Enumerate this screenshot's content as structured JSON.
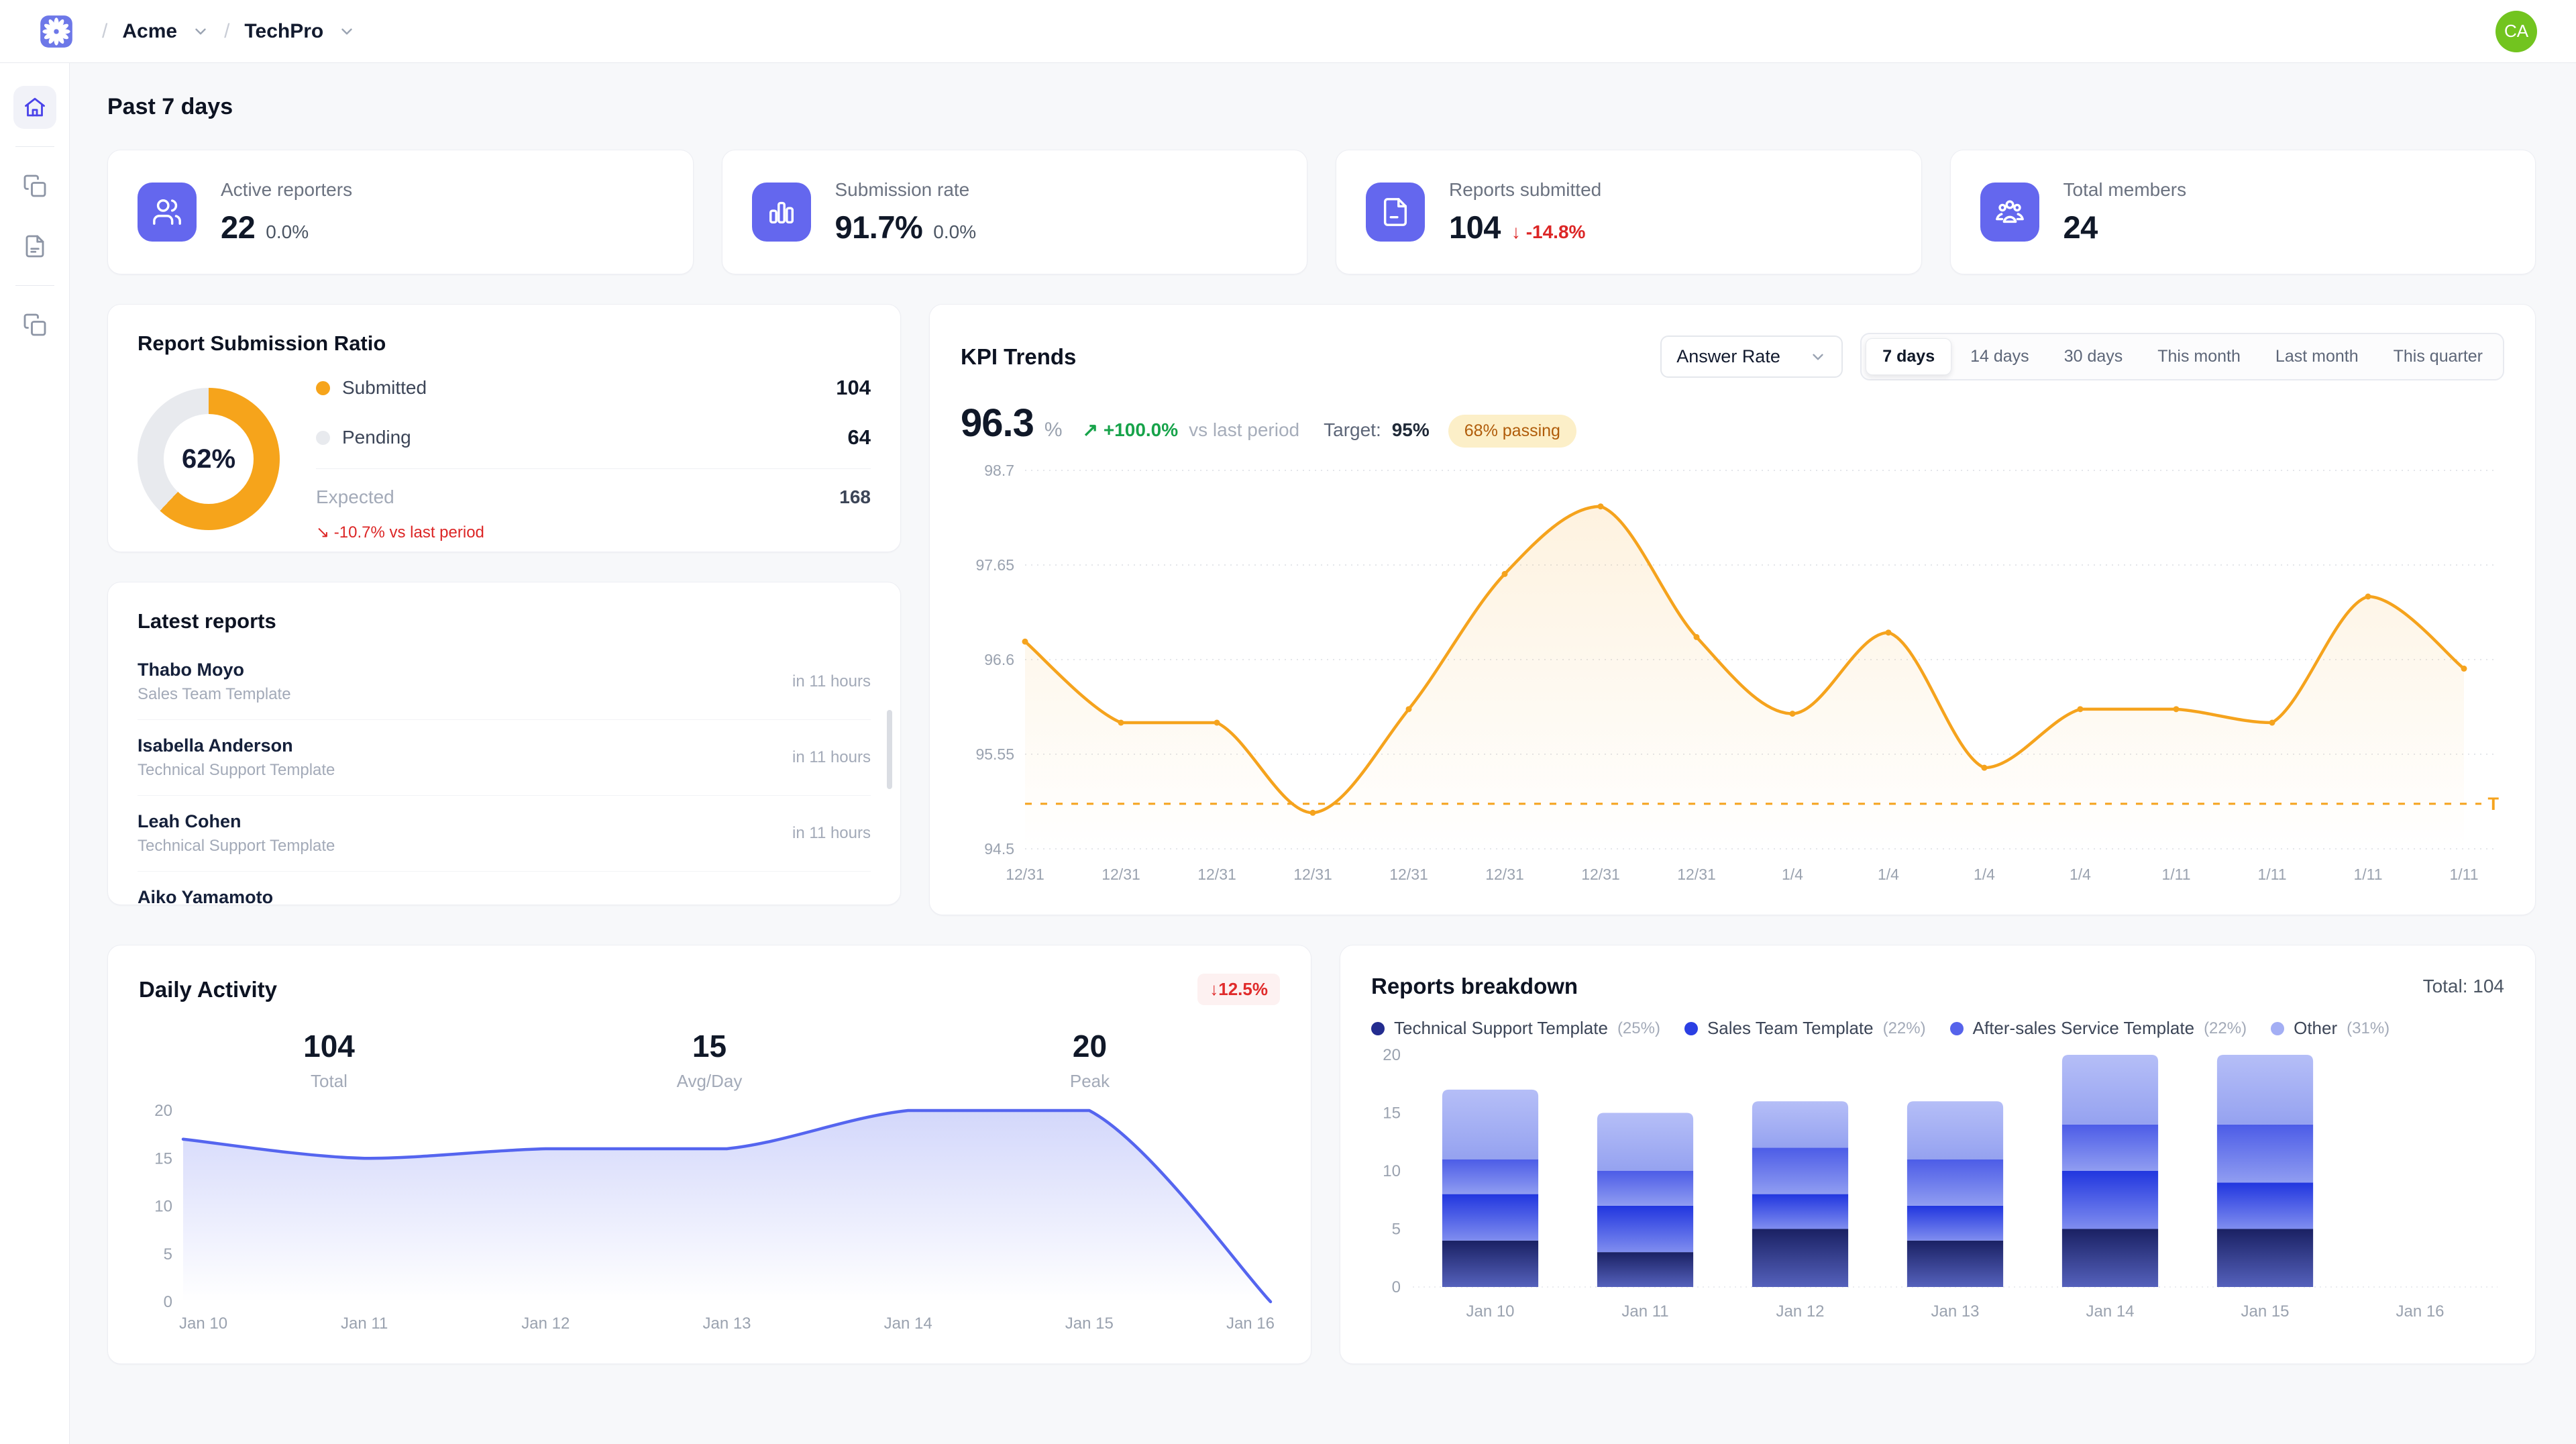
{
  "theme": {
    "accent": "#6467EE",
    "orange": "#F5A31D",
    "blue_line": "#5565EF",
    "green": "#17A34A",
    "red": "#DC2626",
    "avatar_green": "#72C41F"
  },
  "topbar": {
    "separator": "/",
    "breadcrumb": [
      {
        "label": "Acme"
      },
      {
        "label": "TechPro"
      }
    ],
    "avatar_initials": "CA"
  },
  "page_title": "Past 7 days",
  "stats": [
    {
      "label": "Active reporters",
      "value": "22",
      "delta": "0.0%"
    },
    {
      "label": "Submission rate",
      "value": "91.7%",
      "delta": "0.0%"
    },
    {
      "label": "Reports submitted",
      "value": "104",
      "delta_arrow": "↓",
      "delta": "-14.8%"
    },
    {
      "label": "Total members",
      "value": "24"
    }
  ],
  "submission_ratio": {
    "title": "Report Submission Ratio",
    "percent": 62,
    "center_label": "62%",
    "color": "#F6A41B",
    "pending_color": "#E8EAEE",
    "legend": [
      {
        "label": "Submitted",
        "value": "104"
      },
      {
        "label": "Pending",
        "value": "64"
      }
    ],
    "expected_label": "Expected",
    "expected_value": "168",
    "trend_arrow": "↘",
    "trend_note": "-10.7% vs last period"
  },
  "latest_reports": {
    "title": "Latest reports",
    "items": [
      {
        "name": "Thabo Moyo",
        "template": "Sales Team Template",
        "due": "in 11 hours"
      },
      {
        "name": "Isabella Anderson",
        "template": "Technical Support Template",
        "due": "in 11 hours"
      },
      {
        "name": "Leah Cohen",
        "template": "Technical Support Template",
        "due": "in 11 hours"
      },
      {
        "name": "Aiko Yamamoto",
        "template": "",
        "due": ""
      }
    ]
  },
  "kpi_trends": {
    "title": "KPI Trends",
    "metric_select": "Answer Rate",
    "ranges": [
      "7 days",
      "14 days",
      "30 days",
      "This month",
      "Last month",
      "This quarter"
    ],
    "active_range": "7 days",
    "value": "96.3",
    "unit": "%",
    "delta_arrow": "↗",
    "delta": "+100.0%",
    "delta_suffix": "vs last period",
    "target_label": "Target:",
    "target_value": "95%",
    "badge": "68% passing",
    "chart": {
      "type": "line",
      "color": "#F5A31D",
      "x": [
        "12/31",
        "12/31",
        "12/31",
        "12/31",
        "12/31",
        "12/31",
        "12/31",
        "12/31",
        "1/4",
        "1/4",
        "1/4",
        "1/4",
        "1/11",
        "1/11",
        "1/11",
        "1/11"
      ],
      "values": [
        96.8,
        95.9,
        95.9,
        94.9,
        96.05,
        97.55,
        98.3,
        96.85,
        96.0,
        96.9,
        95.4,
        96.05,
        96.05,
        95.9,
        97.3,
        96.5
      ],
      "ylim": [
        94.5,
        98.7
      ],
      "yticks": [
        "94.5",
        "95.55",
        "96.6",
        "97.65",
        "98.7"
      ],
      "target": 95,
      "target_marker": "T",
      "legend_position": "none",
      "grid": "dotted"
    }
  },
  "daily_activity": {
    "title": "Daily Activity",
    "badge": "↓12.5%",
    "stats": [
      {
        "value": "104",
        "label": "Total"
      },
      {
        "value": "15",
        "label": "Avg/Day"
      },
      {
        "value": "20",
        "label": "Peak"
      }
    ],
    "chart": {
      "type": "area",
      "color": "#5565EF",
      "x": [
        "Jan 10",
        "Jan 11",
        "Jan 12",
        "Jan 13",
        "Jan 14",
        "Jan 15",
        "Jan 16"
      ],
      "values": [
        17,
        15,
        16,
        16,
        20,
        20,
        0
      ],
      "ylim": [
        0,
        20
      ],
      "yticks": [
        "0",
        "5",
        "10",
        "15",
        "20"
      ],
      "grid": "off"
    }
  },
  "reports_breakdown": {
    "title": "Reports breakdown",
    "total_label": "Total: 104",
    "chart": {
      "type": "stacked-bar",
      "categories": [
        "Jan 10",
        "Jan 11",
        "Jan 12",
        "Jan 13",
        "Jan 14",
        "Jan 15",
        "Jan 16"
      ],
      "ylim": [
        0,
        20
      ],
      "yticks": [
        "0",
        "5",
        "10",
        "15",
        "20"
      ],
      "series": [
        {
          "name": "Technical Support Template",
          "pct": "(25%)",
          "color": "#232C8F",
          "grad": [
            "#1A2163",
            "#5561BC"
          ],
          "values": [
            4,
            3,
            5,
            4,
            5,
            5,
            0
          ]
        },
        {
          "name": "Sales Team Template",
          "pct": "(22%)",
          "color": "#2B3FE3",
          "grad": [
            "#2136DF",
            "#7F8DEF"
          ],
          "values": [
            4,
            4,
            3,
            3,
            5,
            4,
            0
          ]
        },
        {
          "name": "After-sales Service Template",
          "pct": "(22%)",
          "color": "#5663EB",
          "grad": [
            "#4C5CE7",
            "#909DF1"
          ],
          "values": [
            3,
            3,
            4,
            4,
            4,
            5,
            0
          ]
        },
        {
          "name": "Other",
          "pct": "(31%)",
          "color": "#A3AEF4",
          "grad": [
            "#B5BEF7",
            "#95A2F0"
          ],
          "values": [
            6,
            5,
            4,
            5,
            6,
            6,
            0
          ]
        }
      ]
    }
  }
}
